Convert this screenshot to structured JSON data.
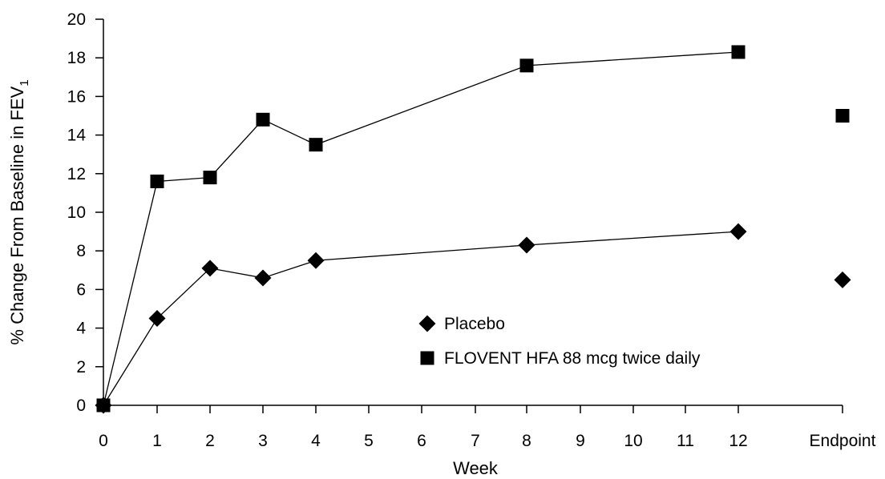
{
  "chart_data": {
    "type": "line",
    "title": "",
    "xlabel": "Week",
    "ylabel": "% Change From Baseline in FEV",
    "ylabel_subscript": "1",
    "ylim": [
      0,
      20
    ],
    "yticks": [
      0,
      2,
      4,
      6,
      8,
      10,
      12,
      14,
      16,
      18,
      20
    ],
    "xticks": [
      "0",
      "1",
      "2",
      "3",
      "4",
      "5",
      "6",
      "7",
      "8",
      "9",
      "10",
      "11",
      "12",
      "Endpoint"
    ],
    "grid": false,
    "legend_position": "center",
    "series": [
      {
        "name": "Placebo",
        "marker": "diamond",
        "color": "#000000",
        "points": [
          {
            "x": "0",
            "y": 0
          },
          {
            "x": "1",
            "y": 4.5
          },
          {
            "x": "2",
            "y": 7.1
          },
          {
            "x": "3",
            "y": 6.6
          },
          {
            "x": "4",
            "y": 7.5
          },
          {
            "x": "8",
            "y": 8.3
          },
          {
            "x": "12",
            "y": 9.0
          }
        ],
        "endpoint": 6.5
      },
      {
        "name": "FLOVENT HFA 88 mcg twice daily",
        "marker": "square",
        "color": "#000000",
        "points": [
          {
            "x": "0",
            "y": 0
          },
          {
            "x": "1",
            "y": 11.6
          },
          {
            "x": "2",
            "y": 11.8
          },
          {
            "x": "3",
            "y": 14.8
          },
          {
            "x": "4",
            "y": 13.5
          },
          {
            "x": "8",
            "y": 17.6
          },
          {
            "x": "12",
            "y": 18.3
          }
        ],
        "endpoint": 15.0
      }
    ]
  }
}
